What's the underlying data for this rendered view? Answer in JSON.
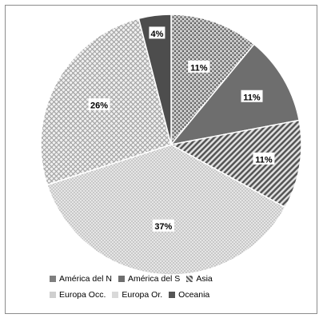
{
  "chart_data": {
    "type": "pie",
    "title": "",
    "series": [
      {
        "name": "América del N",
        "value": 11,
        "label": "11%",
        "color": "#7f7f7f",
        "pattern": "dots"
      },
      {
        "name": "América del S",
        "value": 11,
        "label": "11%",
        "color": "#6e6e6e",
        "pattern": "solid"
      },
      {
        "name": "Asia",
        "value": 11,
        "label": "11%",
        "color": "#8a8a8a",
        "pattern": "diagonal"
      },
      {
        "name": "Europa Occ.",
        "value": 37,
        "label": "37%",
        "color": "#cfcfcf",
        "pattern": "fine-dots"
      },
      {
        "name": "Europa Or.",
        "value": 26,
        "label": "26%",
        "color": "#d9d9d9",
        "pattern": "checker"
      },
      {
        "name": "Oceania",
        "value": 4,
        "label": "4%",
        "color": "#555555",
        "pattern": "solid"
      }
    ],
    "legend": {
      "position": "bottom",
      "rows": [
        [
          "América del N",
          "América del S",
          "Asia"
        ],
        [
          "Europa Occ.",
          "Europa Or.",
          "Oceania"
        ]
      ]
    }
  }
}
